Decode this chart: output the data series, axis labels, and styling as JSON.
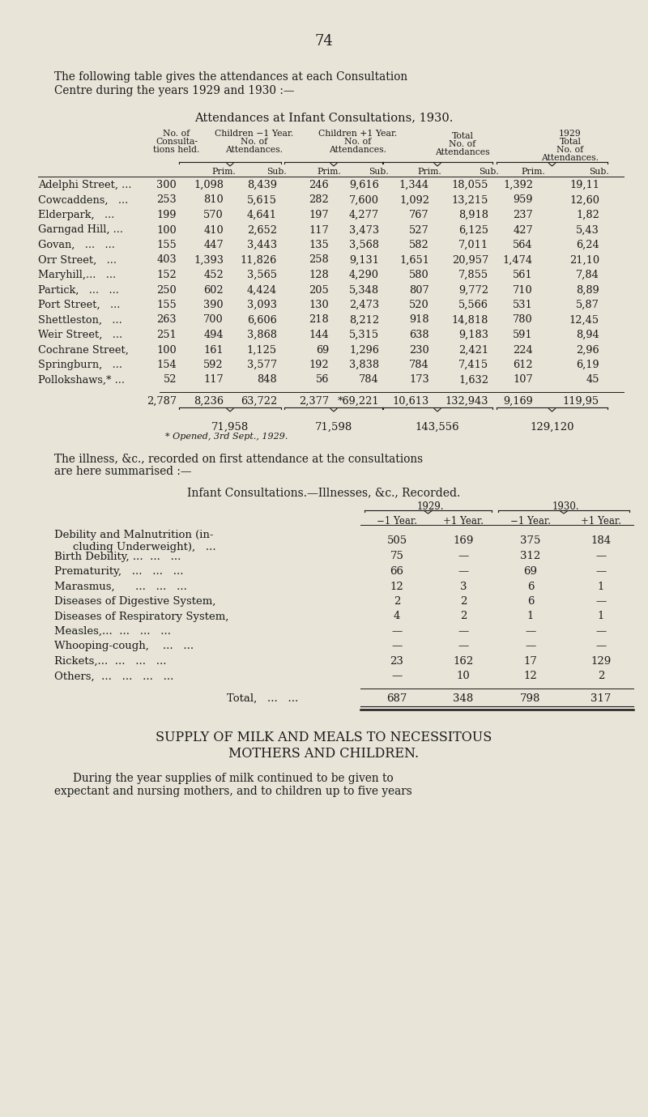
{
  "bg_color": "#e8e4d8",
  "page_number": "74",
  "intro_line1": "The following table gives the attendances at each Consultation",
  "intro_line2": "Centre during the years 1929 and 1930 :—",
  "table1_title": "Attendances at Infant Consultations, 1930.",
  "table1_rows": [
    [
      "Adelphi Street, ...",
      "300",
      "1,098",
      "8,439",
      "246",
      "9,616",
      "1,344",
      "18,055",
      "1,392",
      "19,11"
    ],
    [
      "Cowcaddens,   ...",
      "253",
      "810",
      "5,615",
      "282",
      "7,600",
      "1,092",
      "13,215",
      "959",
      "12,60"
    ],
    [
      "Elderpark,   ...",
      "199",
      "570",
      "4,641",
      "197",
      "4,277",
      "767",
      "8,918",
      "237",
      "1,82"
    ],
    [
      "Garngad Hill, ...",
      "100",
      "410",
      "2,652",
      "117",
      "3,473",
      "527",
      "6,125",
      "427",
      "5,43"
    ],
    [
      "Govan,   ...   ...",
      "155",
      "447",
      "3,443",
      "135",
      "3,568",
      "582",
      "7,011",
      "564",
      "6,24"
    ],
    [
      "Orr Street,   ...",
      "403",
      "1,393",
      "11,826",
      "258",
      "9,131",
      "1,651",
      "20,957",
      "1,474",
      "21,10"
    ],
    [
      "Maryhill,...   ...",
      "152",
      "452",
      "3,565",
      "128",
      "4,290",
      "580",
      "7,855",
      "561",
      "7,84"
    ],
    [
      "Partick,   ...   ...",
      "250",
      "602",
      "4,424",
      "205",
      "5,348",
      "807",
      "9,772",
      "710",
      "8,89"
    ],
    [
      "Port Street,   ...",
      "155",
      "390",
      "3,093",
      "130",
      "2,473",
      "520",
      "5,566",
      "531",
      "5,87"
    ],
    [
      "Shettleston,   ...",
      "263",
      "700",
      "6,606",
      "218",
      "8,212",
      "918",
      "14,818",
      "780",
      "12,45"
    ],
    [
      "Weir Street,   ...",
      "251",
      "494",
      "3,868",
      "144",
      "5,315",
      "638",
      "9,183",
      "591",
      "8,94"
    ],
    [
      "Cochrane Street,",
      "100",
      "161",
      "1,125",
      "69",
      "1,296",
      "230",
      "2,421",
      "224",
      "2,96"
    ],
    [
      "Springburn,   ...",
      "154",
      "592",
      "3,577",
      "192",
      "3,838",
      "784",
      "7,415",
      "612",
      "6,19"
    ],
    [
      "Pollokshaws,* ...",
      "52",
      "117",
      "848",
      "56",
      "784",
      "173",
      "1,632",
      "107",
      "45"
    ]
  ],
  "table1_totals_nums": [
    "2,787",
    "8,236",
    "63,722",
    "2,377",
    "*69,221",
    "10,613",
    "132,943",
    "9,169",
    "119,95"
  ],
  "table1_subtotals": [
    "71,958",
    "71,598",
    "143,556",
    "129,120"
  ],
  "table1_note": "* Opened, 3rd Sept., 1929.",
  "illness_intro_line1": "The illness, &c., recorded on first attendance at the consultations",
  "illness_intro_line2": "are here summarised :—",
  "table2_title": "Infant Consultations.—Illnesses, &c., Recorded.",
  "table2_rows": [
    [
      "Debility and Malnutrition (in-",
      "cluding Underweight),   ...",
      "505",
      "169",
      "375",
      "184"
    ],
    [
      "Birth Debility, ...  ...   ...",
      "",
      "75",
      "—",
      "312",
      "—"
    ],
    [
      "Prematurity,   ...   ...   ...",
      "",
      "66",
      "—",
      "69",
      "—"
    ],
    [
      "Marasmus,      ...   ...   ...",
      "",
      "12",
      "3",
      "6",
      "1"
    ],
    [
      "Diseases of Digestive System,",
      "",
      "2",
      "2",
      "6",
      "—"
    ],
    [
      "Diseases of Respiratory System,",
      "",
      "4",
      "2",
      "1",
      "1"
    ],
    [
      "Measles,...  ...   ...   ...",
      "",
      "—",
      "—",
      "—",
      "—"
    ],
    [
      "Whooping-cough,    ...   ...",
      "",
      "—",
      "—",
      "—",
      "—"
    ],
    [
      "Rickets,...  ...   ...   ...",
      "",
      "23",
      "162",
      "17",
      "129"
    ],
    [
      "Others,  ...   ...   ...   ...",
      "",
      "—",
      "10",
      "12",
      "2"
    ]
  ],
  "table2_total": [
    "687",
    "348",
    "798",
    "317"
  ],
  "supply_title_line1": "SUPPLY OF MILK AND MEALS TO NECESSITOUS",
  "supply_title_line2": "MOTHERS AND CHILDREN.",
  "supply_text_line1": "During the year supplies of milk continued to be given to",
  "supply_text_line2": "expectant and nursing mothers, and to children up to five years"
}
